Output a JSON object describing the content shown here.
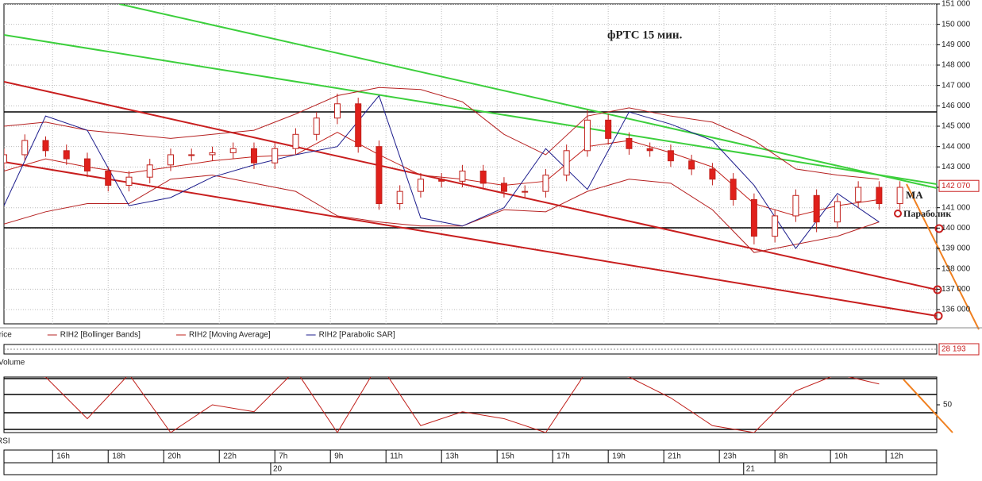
{
  "chart_data": [
    {
      "type": "candlestick",
      "title": "фРТС   15 мин.",
      "annotations": [
        "MA",
        "Параболик"
      ],
      "x": [
        0,
        3,
        6,
        9,
        12,
        15,
        18,
        21,
        24,
        27,
        30,
        33,
        36,
        39,
        42,
        45,
        48,
        51,
        54,
        57,
        60,
        63,
        66,
        69,
        72,
        75,
        78,
        81,
        84,
        87,
        90,
        93,
        96,
        99,
        102,
        105,
        108,
        111,
        114,
        117,
        120,
        123,
        126,
        129
      ],
      "open": [
        143200,
        143600,
        144300,
        143800,
        143400,
        142800,
        142100,
        142500,
        143100,
        143600,
        143600,
        143700,
        143900,
        143200,
        143900,
        144600,
        145400,
        146100,
        144000,
        141200,
        141800,
        142400,
        142300,
        142800,
        142200,
        141800,
        141800,
        142600,
        143800,
        145300,
        144400,
        143900,
        143800,
        143300,
        142900,
        142400,
        141400,
        139600,
        140600,
        141600,
        140300,
        141300,
        142000,
        141200
      ],
      "high": [
        143900,
        144600,
        144500,
        144100,
        143700,
        143000,
        142800,
        143400,
        143900,
        143900,
        144000,
        144200,
        144200,
        144200,
        144900,
        145700,
        146600,
        146400,
        144300,
        142100,
        142700,
        142700,
        143100,
        143100,
        142500,
        142100,
        142900,
        144100,
        145800,
        145600,
        144700,
        144200,
        144100,
        143600,
        143200,
        142700,
        141700,
        140900,
        141900,
        141900,
        141600,
        142300,
        142300,
        142300
      ],
      "low": [
        142900,
        143300,
        143500,
        143100,
        142500,
        141800,
        141800,
        142200,
        142800,
        143300,
        143300,
        143400,
        142900,
        142900,
        143600,
        144300,
        145100,
        143700,
        140900,
        140900,
        141500,
        142000,
        142000,
        141900,
        141500,
        141500,
        141500,
        142300,
        143500,
        144100,
        143600,
        143500,
        143000,
        142600,
        142100,
        141100,
        139200,
        139300,
        140300,
        139800,
        140000,
        141000,
        140900,
        140900
      ],
      "close": [
        143600,
        144300,
        143800,
        143400,
        142800,
        142100,
        142500,
        143100,
        143600,
        143600,
        143700,
        143900,
        143200,
        143900,
        144600,
        145400,
        146100,
        144000,
        141200,
        141800,
        142400,
        142300,
        142800,
        142200,
        141800,
        141800,
        142600,
        143800,
        145300,
        144400,
        143900,
        143800,
        143300,
        142900,
        142400,
        141400,
        139600,
        140600,
        141600,
        140300,
        141300,
        142000,
        141200,
        142000
      ],
      "up_color": "#ffffff",
      "down_color": "#e0201b",
      "candle_outline": "#c0201b",
      "series": [
        {
          "name": "Price",
          "color": "#000000"
        },
        {
          "name": "RIH2 [Bollinger Bands]",
          "color": "#b52020",
          "x": [
            0,
            6,
            12,
            18,
            24,
            30,
            36,
            42,
            48,
            54,
            60,
            66,
            72,
            78,
            84,
            90,
            96,
            102,
            108,
            114,
            120,
            126
          ],
          "upper": [
            145000,
            145200,
            144800,
            144600,
            144400,
            144600,
            144800,
            145600,
            146500,
            146900,
            146800,
            146200,
            144600,
            143600,
            145500,
            145900,
            145500,
            145200,
            144300,
            142900,
            142600,
            142400
          ],
          "lower": [
            140200,
            140800,
            141200,
            141200,
            142400,
            142600,
            142200,
            141800,
            140600,
            140300,
            140100,
            140100,
            140900,
            140800,
            141800,
            142400,
            142200,
            140900,
            138800,
            139200,
            139600,
            140300
          ]
        },
        {
          "name": "RIH2 [Moving Average]",
          "color": "#c0201b",
          "x": [
            0,
            6,
            12,
            18,
            24,
            30,
            36,
            42,
            48,
            54,
            60,
            66,
            72,
            78,
            84,
            90,
            96,
            102,
            108,
            114,
            120,
            126
          ],
          "values": [
            142800,
            143400,
            143000,
            142700,
            143000,
            143300,
            143500,
            143600,
            144700,
            143600,
            142600,
            142400,
            142100,
            142300,
            144000,
            144300,
            143700,
            143000,
            141200,
            140600,
            141100,
            141400
          ]
        },
        {
          "name": "RIH2 [Parabolic SAR]",
          "color": "#1c1c8c",
          "x": [
            0,
            6,
            12,
            18,
            24,
            30,
            36,
            42,
            48,
            54,
            60,
            66,
            72,
            78,
            84,
            90,
            96,
            102,
            108,
            114,
            120,
            126
          ],
          "values": [
            141100,
            145500,
            144800,
            141100,
            141500,
            142500,
            143100,
            143600,
            144000,
            146500,
            140500,
            140100,
            141000,
            143900,
            141900,
            145700,
            145100,
            144300,
            142100,
            139000,
            141700,
            140300
          ]
        }
      ],
      "last_price": {
        "value": 142070,
        "label": "142 070"
      },
      "xlim": [
        0,
        134.3
      ],
      "xticks": [
        {
          "value": 7,
          "label": "16h"
        },
        {
          "value": 15,
          "label": "18h"
        },
        {
          "value": 23,
          "label": "20h"
        },
        {
          "value": 31,
          "label": "22h"
        },
        {
          "value": 39,
          "label": "7h"
        },
        {
          "value": 47,
          "label": "9h"
        },
        {
          "value": 55,
          "label": "11h"
        },
        {
          "value": 63,
          "label": "13h"
        },
        {
          "value": 71,
          "label": "15h"
        },
        {
          "value": 79,
          "label": "17h"
        },
        {
          "value": 87,
          "label": "19h"
        },
        {
          "value": 95,
          "label": "21h"
        },
        {
          "value": 103,
          "label": "23h"
        },
        {
          "value": 111,
          "label": "8h"
        },
        {
          "value": 119,
          "label": "10h"
        },
        {
          "value": 127,
          "label": "12h"
        }
      ],
      "xdates": [
        {
          "value": 38.4,
          "label": "20"
        },
        {
          "value": 106.5,
          "label": "21"
        }
      ],
      "ylim": [
        135300,
        151000
      ],
      "yticks": [
        {
          "value": 151000,
          "label": "151 000"
        },
        {
          "value": 150000,
          "label": "150 000"
        },
        {
          "value": 149000,
          "label": "149 000"
        },
        {
          "value": 148000,
          "label": "148 000"
        },
        {
          "value": 147000,
          "label": "147 000"
        },
        {
          "value": 146000,
          "label": "146 000"
        },
        {
          "value": 145000,
          "label": "145 000"
        },
        {
          "value": 144000,
          "label": "144 000"
        },
        {
          "value": 143000,
          "label": "143 000"
        },
        {
          "value": 142000,
          "label": "142 000"
        },
        {
          "value": 141000,
          "label": "141 000"
        },
        {
          "value": 140000,
          "label": "140 000"
        },
        {
          "value": 139000,
          "label": "139 000"
        },
        {
          "value": 138000,
          "label": "138 000"
        },
        {
          "value": 137000,
          "label": "137 000"
        },
        {
          "value": 136000,
          "label": "136 000"
        }
      ],
      "grid": true
    },
    {
      "type": "volume",
      "title": "Volume",
      "values": [
        28193
      ],
      "value_labels": [
        "28 193"
      ]
    },
    {
      "type": "line",
      "title": "RSI",
      "color": "#c0201b",
      "x": [
        0,
        6,
        12,
        18,
        24,
        30,
        36,
        42,
        48,
        54,
        60,
        66,
        72,
        78,
        84,
        90,
        96,
        102,
        108,
        114,
        120,
        126
      ],
      "values": [
        75,
        70,
        40,
        72,
        30,
        50,
        45,
        75,
        30,
        80,
        35,
        45,
        40,
        30,
        75,
        70,
        55,
        35,
        30,
        60,
        72,
        65
      ],
      "ylim": [
        30,
        70
      ],
      "yticks": [
        50
      ]
    }
  ]
}
